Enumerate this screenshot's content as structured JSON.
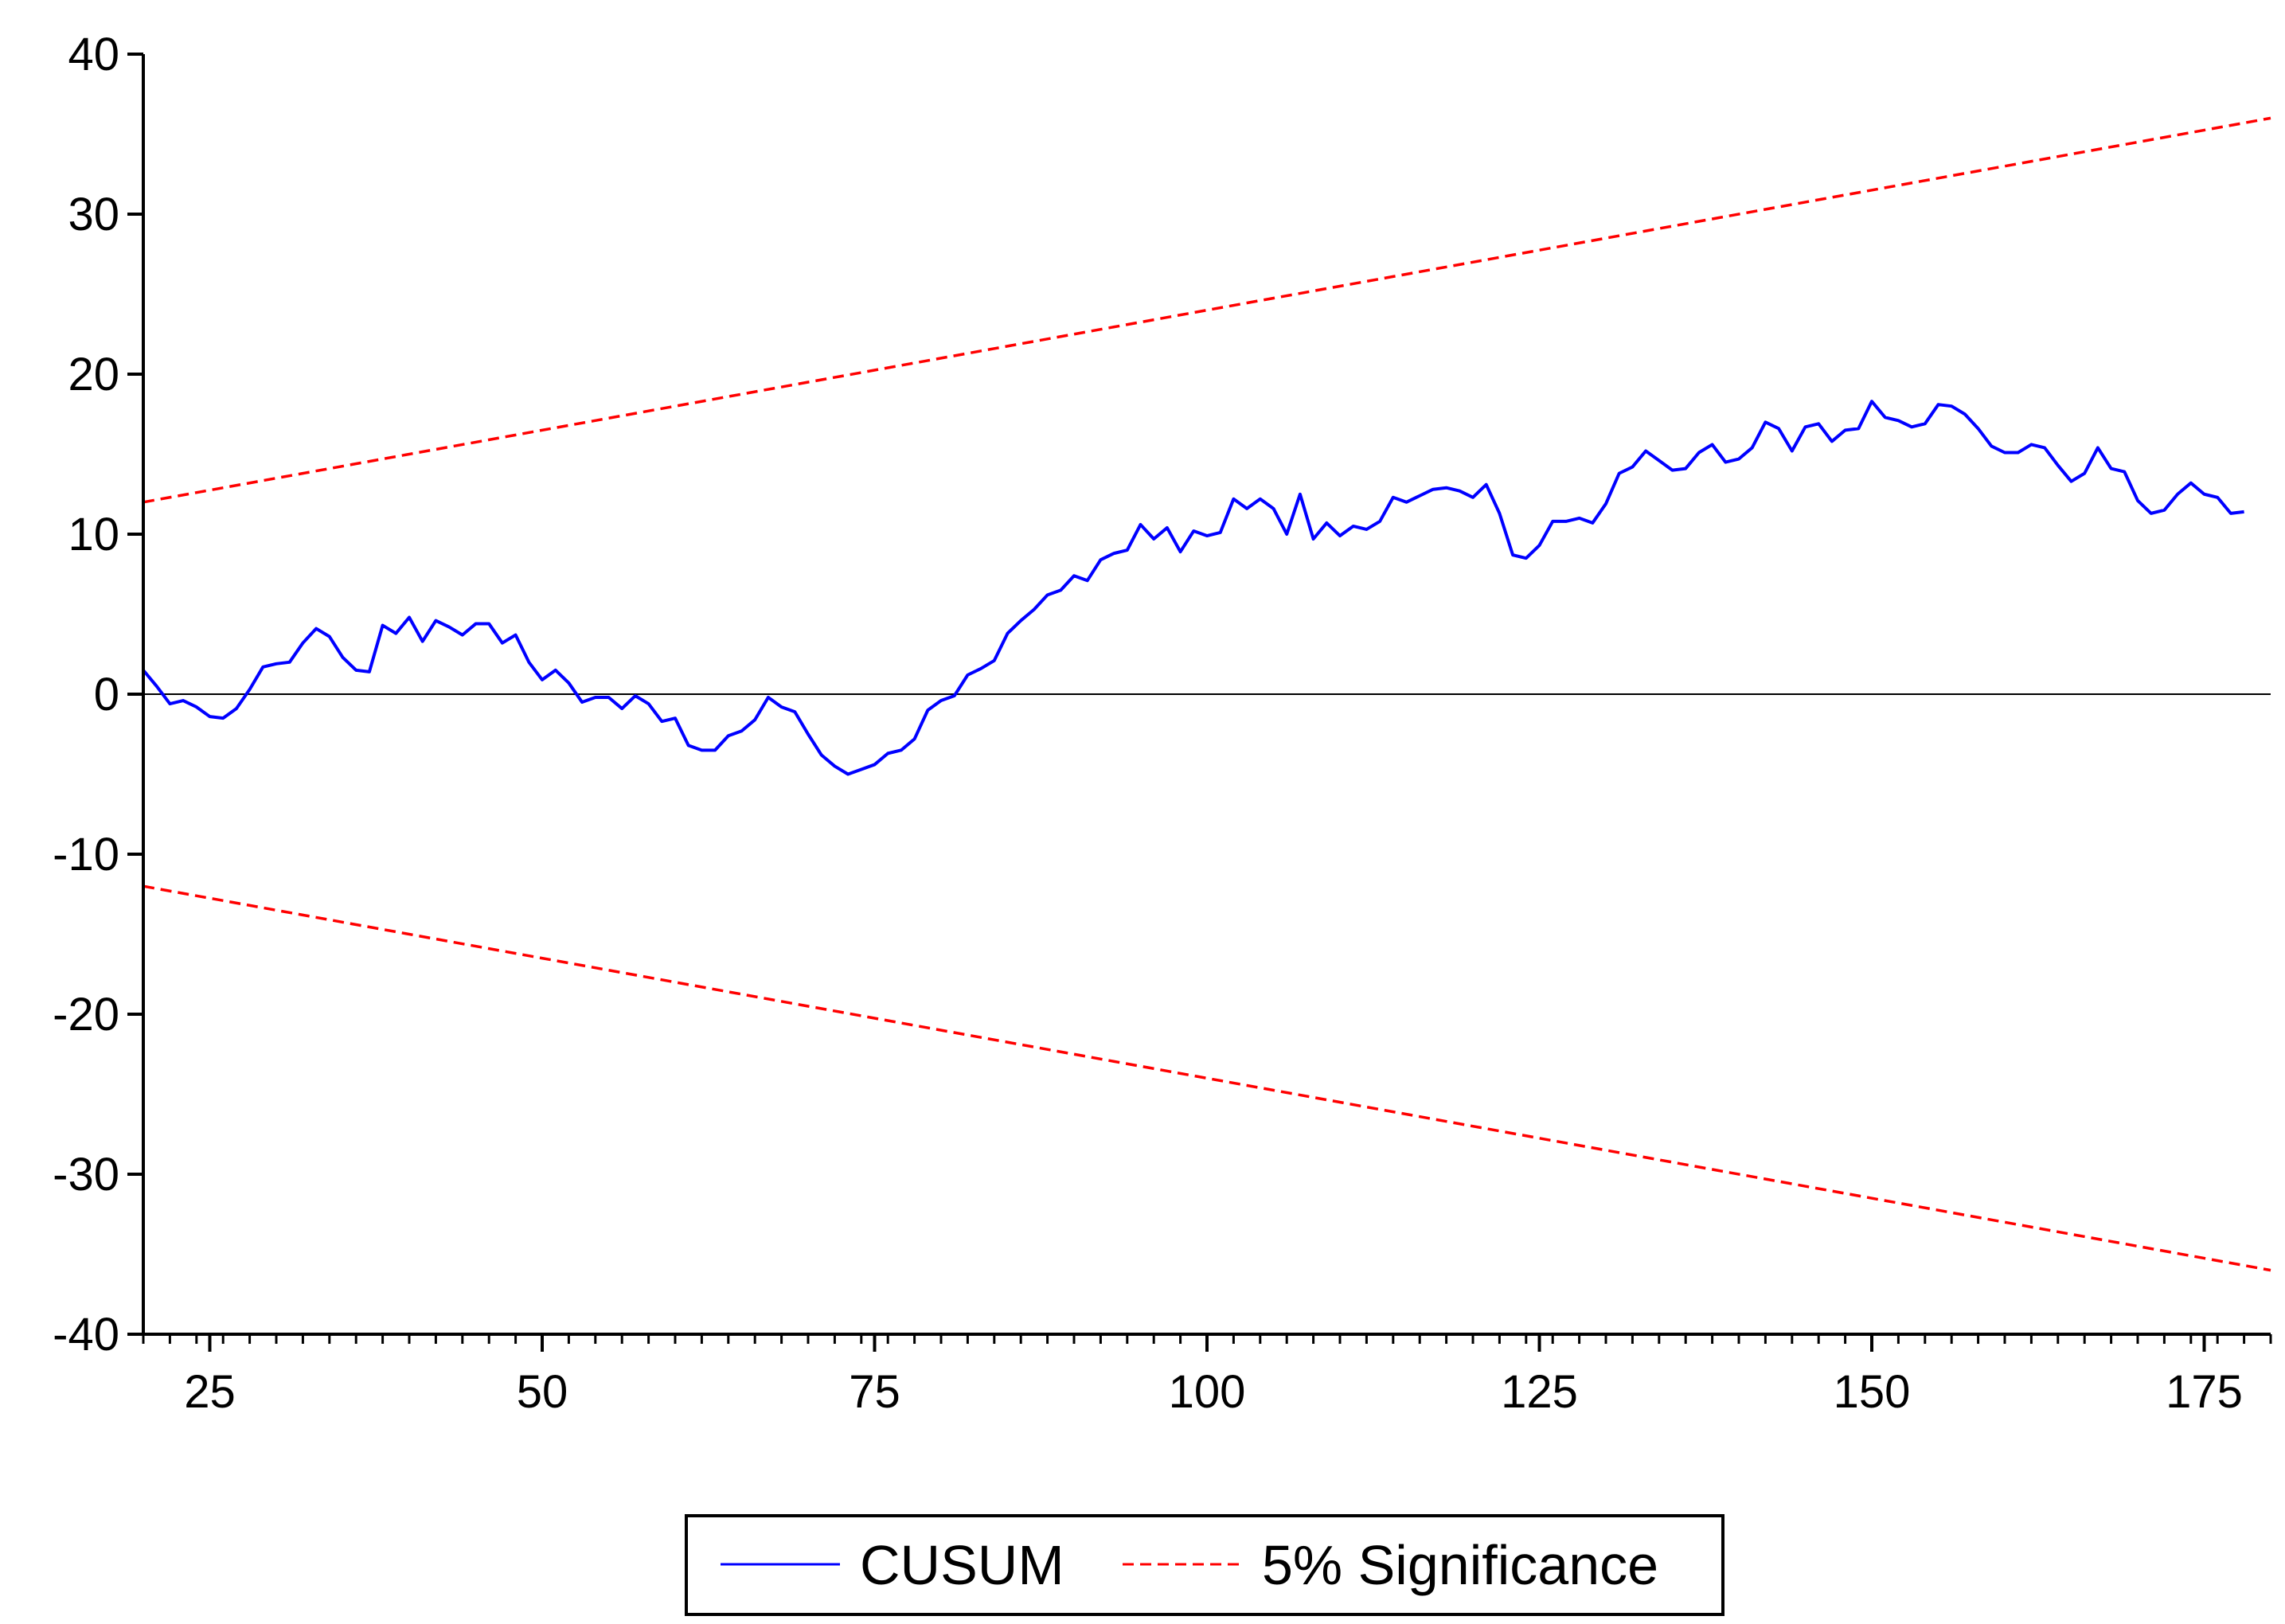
{
  "chart_data": {
    "type": "line",
    "title": "",
    "xlabel": "",
    "ylabel": "",
    "xlim": [
      20,
      180
    ],
    "ylim": [
      -40,
      40
    ],
    "x_ticks": [
      25,
      50,
      75,
      100,
      125,
      150,
      175
    ],
    "x_tick_labels": [
      "25",
      "50",
      "75",
      "100",
      "125",
      "150",
      "175"
    ],
    "y_ticks": [
      40,
      30,
      20,
      10,
      0,
      -10,
      -20,
      -30,
      -40
    ],
    "y_tick_labels": [
      "40",
      "30",
      "20",
      "10",
      "0",
      "-10",
      "-20",
      "-30",
      "-40"
    ],
    "grid": false,
    "zero_line": true,
    "legend": {
      "position": "bottom-center",
      "framed": true
    },
    "series": [
      {
        "name": "CUSUM",
        "color": "#0000ff",
        "style": "solid",
        "x_start": 20,
        "values": [
          1.5,
          0.5,
          -0.6,
          -0.4,
          -0.8,
          -1.4,
          -1.5,
          -0.9,
          0.3,
          1.7,
          1.9,
          2.0,
          3.2,
          4.1,
          3.6,
          2.3,
          1.5,
          1.4,
          4.3,
          3.8,
          4.8,
          3.3,
          4.6,
          4.2,
          3.7,
          4.4,
          4.4,
          3.2,
          3.7,
          2.0,
          0.9,
          1.5,
          0.7,
          -0.5,
          -0.2,
          -0.2,
          -0.9,
          -0.1,
          -0.6,
          -1.7,
          -1.5,
          -3.2,
          -3.5,
          -3.5,
          -2.6,
          -2.3,
          -1.6,
          -0.2,
          -0.8,
          -1.1,
          -2.5,
          -3.8,
          -4.5,
          -5.0,
          -4.7,
          -4.4,
          -3.7,
          -3.5,
          -2.8,
          -1.0,
          -0.4,
          -0.1,
          1.2,
          1.6,
          2.1,
          3.8,
          4.6,
          5.3,
          6.2,
          6.5,
          7.4,
          7.1,
          8.4,
          8.8,
          9.0,
          10.6,
          9.7,
          10.4,
          8.9,
          10.2,
          9.9,
          10.1,
          12.2,
          11.6,
          12.2,
          11.6,
          10.0,
          12.5,
          9.7,
          10.7,
          9.9,
          10.5,
          10.3,
          10.8,
          12.3,
          12.0,
          12.4,
          12.8,
          12.9,
          12.7,
          12.3,
          13.1,
          11.3,
          8.7,
          8.5,
          9.3,
          10.8,
          10.8,
          11.0,
          10.7,
          11.9,
          13.8,
          14.2,
          15.2,
          14.6,
          14.0,
          14.1,
          15.1,
          15.6,
          14.5,
          14.7,
          15.4,
          17.0,
          16.6,
          15.2,
          16.7,
          16.9,
          15.8,
          16.5,
          16.6,
          18.3,
          17.3,
          17.1,
          16.7,
          16.9,
          18.1,
          18.0,
          17.5,
          16.6,
          15.5,
          15.1,
          15.1,
          15.6,
          15.4,
          14.3,
          13.3,
          13.8,
          15.4,
          14.1,
          13.9,
          12.1,
          11.3,
          11.5,
          12.5,
          13.2,
          12.5,
          12.3,
          11.3,
          11.4
        ]
      },
      {
        "name": "5% Significance",
        "color": "#ff0000",
        "style": "dashed",
        "x": [
          20,
          180
        ],
        "upper": [
          12.0,
          36.0
        ],
        "lower": [
          -12.0,
          -36.0
        ]
      }
    ]
  }
}
